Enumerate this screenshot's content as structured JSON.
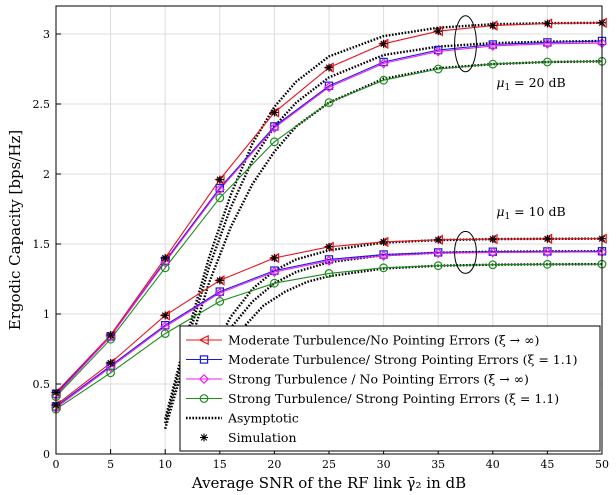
{
  "chart_data": {
    "type": "line",
    "xlabel": "Average SNR of the RF link γ̄₂ in dB",
    "ylabel": "Ergodic Capacity [bps/Hz]",
    "xlim": [
      0,
      50
    ],
    "ylim": [
      0,
      3.2
    ],
    "xticks": [
      0,
      5,
      10,
      15,
      20,
      25,
      30,
      35,
      40,
      45,
      50
    ],
    "yticks": [
      0,
      0.5,
      1,
      1.5,
      2,
      2.5,
      3
    ],
    "grid": true,
    "legend_position": "bottom-right",
    "x": [
      0,
      5,
      10,
      15,
      20,
      25,
      30,
      35,
      40,
      45,
      50
    ],
    "series": [
      {
        "name": "Moderate Turbulence/No Pointing Errors (ξ → ∞)",
        "color": "#e8141c",
        "marker": "triangle-left",
        "group": "μ1 = 20 dB",
        "values": [
          0.44,
          0.85,
          1.4,
          1.96,
          2.44,
          2.76,
          2.93,
          3.02,
          3.06,
          3.075,
          3.08
        ]
      },
      {
        "name": "Moderate Turbulence/ Strong Pointing Errors (ξ = 1.1)",
        "color": "#1a1adb",
        "marker": "square",
        "group": "μ1 = 20 dB",
        "values": [
          0.43,
          0.84,
          1.38,
          1.9,
          2.34,
          2.63,
          2.8,
          2.885,
          2.925,
          2.94,
          2.95
        ]
      },
      {
        "name": "Strong Turbulence / No Pointing Errors (ξ → ∞)",
        "color": "#ee1ef0",
        "marker": "diamond",
        "group": "μ1 = 20 dB",
        "values": [
          0.42,
          0.84,
          1.37,
          1.89,
          2.33,
          2.62,
          2.79,
          2.875,
          2.915,
          2.93,
          2.935
        ]
      },
      {
        "name": "Strong Turbulence/ Strong Pointing Errors (ξ = 1.1)",
        "color": "#1d8c1d",
        "marker": "circle",
        "group": "μ1 = 20 dB",
        "values": [
          0.41,
          0.82,
          1.33,
          1.83,
          2.23,
          2.51,
          2.67,
          2.75,
          2.785,
          2.8,
          2.805
        ]
      },
      {
        "name": "Moderate Turbulence/No Pointing Errors (ξ → ∞)",
        "color": "#e8141c",
        "marker": "triangle-left",
        "group": "μ1 = 10 dB",
        "values": [
          0.35,
          0.65,
          0.99,
          1.24,
          1.4,
          1.48,
          1.515,
          1.53,
          1.535,
          1.537,
          1.538
        ]
      },
      {
        "name": "Moderate Turbulence/ Strong Pointing Errors (ξ = 1.1)",
        "color": "#1a1adb",
        "marker": "square",
        "group": "μ1 = 10 dB",
        "values": [
          0.34,
          0.63,
          0.92,
          1.16,
          1.31,
          1.39,
          1.425,
          1.44,
          1.445,
          1.447,
          1.448
        ]
      },
      {
        "name": "Strong Turbulence / No Pointing Errors (ξ → ∞)",
        "color": "#ee1ef0",
        "marker": "diamond",
        "group": "μ1 = 10 dB",
        "values": [
          0.33,
          0.62,
          0.91,
          1.15,
          1.3,
          1.38,
          1.415,
          1.435,
          1.44,
          1.442,
          1.443
        ]
      },
      {
        "name": "Strong Turbulence/ Strong Pointing Errors (ξ = 1.1)",
        "color": "#1d8c1d",
        "marker": "circle",
        "group": "μ1 = 10 dB",
        "values": [
          0.32,
          0.58,
          0.86,
          1.09,
          1.22,
          1.29,
          1.33,
          1.345,
          1.352,
          1.355,
          1.356
        ]
      }
    ],
    "asymptotic": {
      "name": "Asymptotic",
      "curves": [
        {
          "x": [
            10,
            12,
            14,
            16,
            18,
            20,
            22,
            25,
            30,
            35,
            40,
            45,
            50
          ],
          "y": [
            0.25,
            0.85,
            1.4,
            1.85,
            2.22,
            2.48,
            2.66,
            2.84,
            2.985,
            3.045,
            3.07,
            3.077,
            3.08
          ]
        },
        {
          "x": [
            10,
            12,
            14,
            16,
            18,
            20,
            22,
            25,
            30,
            35,
            40,
            45,
            50
          ],
          "y": [
            0.22,
            0.8,
            1.33,
            1.76,
            2.1,
            2.34,
            2.51,
            2.69,
            2.85,
            2.91,
            2.935,
            2.945,
            2.95
          ]
        },
        {
          "x": [
            10,
            12,
            14,
            16,
            18,
            20,
            22,
            25,
            30,
            35,
            40,
            45,
            50
          ],
          "y": [
            0.18,
            0.72,
            1.22,
            1.62,
            1.93,
            2.16,
            2.34,
            2.51,
            2.68,
            2.755,
            2.785,
            2.8,
            2.805
          ]
        },
        {
          "x": [
            12,
            14,
            16,
            18,
            20,
            22,
            25,
            30,
            35,
            40,
            45,
            50
          ],
          "y": [
            0.3,
            0.68,
            0.98,
            1.18,
            1.31,
            1.39,
            1.455,
            1.51,
            1.528,
            1.535,
            1.537,
            1.538
          ]
        },
        {
          "x": [
            12,
            14,
            16,
            18,
            20,
            22,
            25,
            30,
            35,
            40,
            45,
            50
          ],
          "y": [
            0.26,
            0.62,
            0.9,
            1.09,
            1.22,
            1.3,
            1.37,
            1.42,
            1.438,
            1.445,
            1.447,
            1.448
          ]
        },
        {
          "x": [
            13,
            15,
            17,
            19,
            21,
            23,
            25,
            30,
            35,
            40,
            45,
            50
          ],
          "y": [
            0.3,
            0.64,
            0.89,
            1.06,
            1.16,
            1.23,
            1.27,
            1.325,
            1.345,
            1.352,
            1.355,
            1.356
          ]
        }
      ]
    },
    "simulation": {
      "name": "Simulation"
    },
    "annotations": [
      {
        "text": "μ1 = 20 dB",
        "label_at": [
          43.5,
          2.62
        ],
        "ellipse_center": [
          37.5,
          2.93
        ],
        "ellipse_r": [
          1.0,
          0.2
        ]
      },
      {
        "text": "μ1 = 10 dB",
        "label_at": [
          43.5,
          1.7
        ],
        "ellipse_center": [
          37.5,
          1.44
        ],
        "ellipse_r": [
          1.0,
          0.15
        ]
      }
    ]
  }
}
